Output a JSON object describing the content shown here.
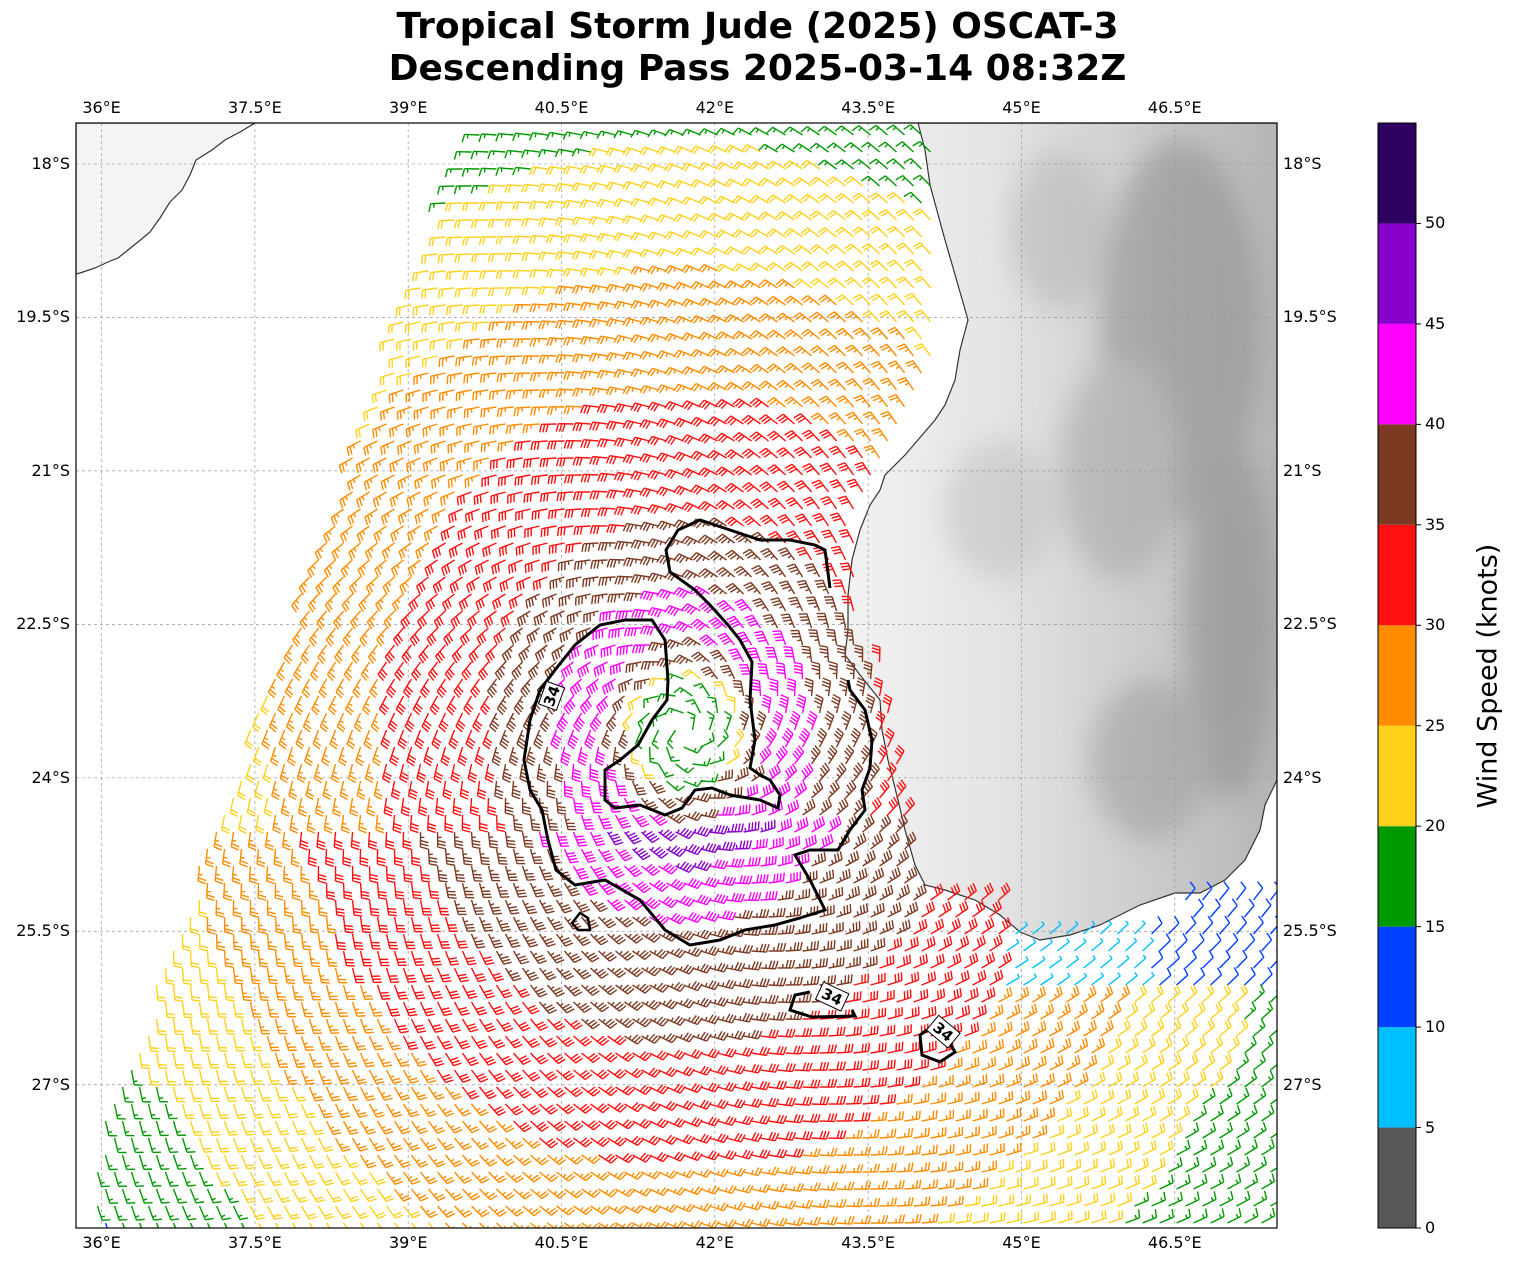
{
  "title": {
    "line1": "Tropical Storm Jude (2025) OSCAT-3",
    "line2": "Descending Pass 2025-03-14 08:32Z"
  },
  "map": {
    "lon_range": [
      35.75,
      47.5
    ],
    "lat_range": [
      -28.4,
      -17.6
    ],
    "lon_ticks": [
      {
        "v": 36,
        "label": "36°E"
      },
      {
        "v": 37.5,
        "label": "37.5°E"
      },
      {
        "v": 39,
        "label": "39°E"
      },
      {
        "v": 40.5,
        "label": "40.5°E"
      },
      {
        "v": 42,
        "label": "42°E"
      },
      {
        "v": 43.5,
        "label": "43.5°E"
      },
      {
        "v": 45,
        "label": "45°E"
      },
      {
        "v": 46.5,
        "label": "46.5°E"
      }
    ],
    "lat_ticks": [
      {
        "v": -18,
        "label": "18°S"
      },
      {
        "v": -19.5,
        "label": "19.5°S"
      },
      {
        "v": -21,
        "label": "21°S"
      },
      {
        "v": -22.5,
        "label": "22.5°S"
      },
      {
        "v": -24,
        "label": "24°S"
      },
      {
        "v": -25.5,
        "label": "25.5°S"
      },
      {
        "v": -27,
        "label": "27°S"
      }
    ],
    "storm_center": {
      "lon": 41.7,
      "lat": -23.55
    },
    "contour_label": "34",
    "contour_level_kt": 34
  },
  "colorbar": {
    "title": "Wind Speed (knots)",
    "ticks": [
      "0",
      "5",
      "10",
      "15",
      "20",
      "25",
      "30",
      "35",
      "40",
      "45",
      "50"
    ],
    "bins": [
      {
        "min": 0,
        "max": 5,
        "color": "#575757"
      },
      {
        "min": 5,
        "max": 10,
        "color": "#00bfff"
      },
      {
        "min": 10,
        "max": 15,
        "color": "#0040ff"
      },
      {
        "min": 15,
        "max": 20,
        "color": "#009900"
      },
      {
        "min": 20,
        "max": 25,
        "color": "#ffd11a"
      },
      {
        "min": 25,
        "max": 30,
        "color": "#ff8c00"
      },
      {
        "min": 30,
        "max": 35,
        "color": "#ff1010"
      },
      {
        "min": 35,
        "max": 40,
        "color": "#7d3a22"
      },
      {
        "min": 40,
        "max": 45,
        "color": "#ff00ff"
      },
      {
        "min": 45,
        "max": 50,
        "color": "#8800cc"
      },
      {
        "min": 50,
        "max": 55,
        "color": "#2e0060"
      }
    ]
  }
}
